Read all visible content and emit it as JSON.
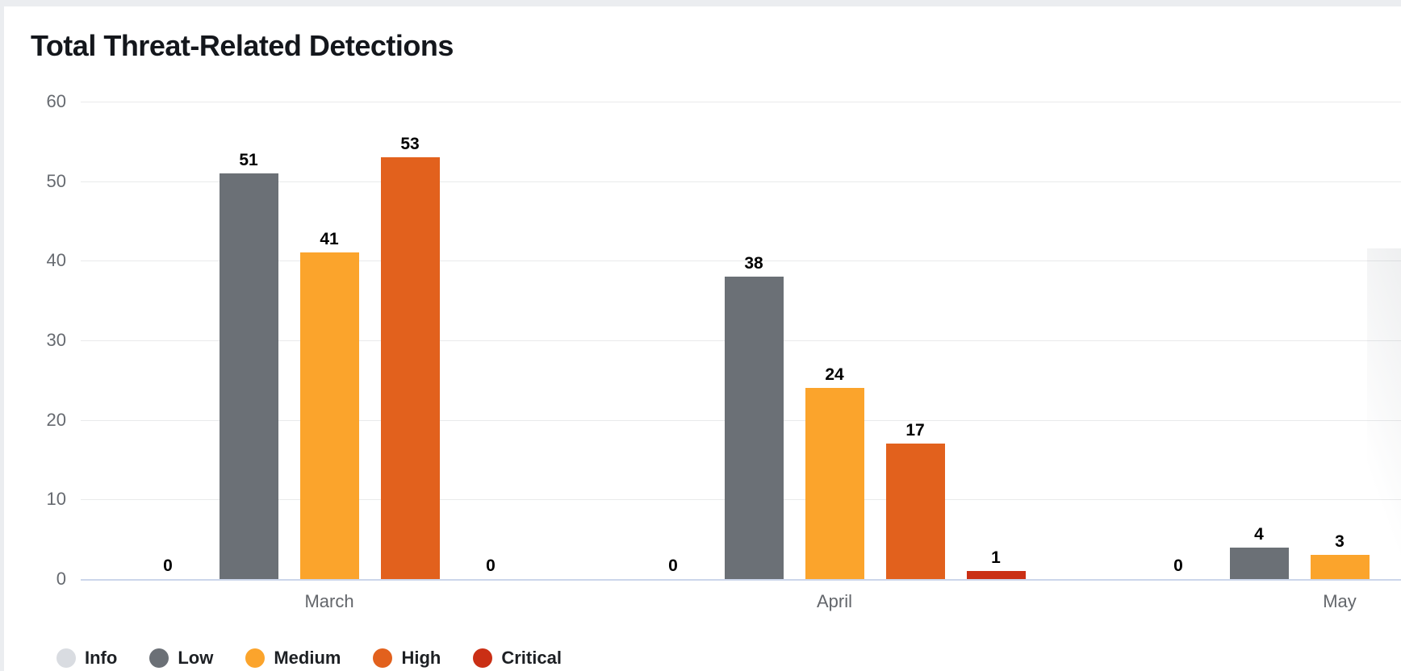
{
  "page": {
    "background": "#ebedf0",
    "card_background": "#ffffff"
  },
  "chart_data": {
    "type": "bar",
    "title": "Total Threat-Related Detections",
    "categories": [
      "March",
      "April",
      "May"
    ],
    "series": [
      {
        "name": "Info",
        "color": "#d9dce1",
        "values": [
          0,
          0,
          0
        ]
      },
      {
        "name": "Low",
        "color": "#6b7076",
        "values": [
          51,
          38,
          4
        ]
      },
      {
        "name": "Medium",
        "color": "#fba42c",
        "values": [
          41,
          24,
          3
        ]
      },
      {
        "name": "High",
        "color": "#e2611d",
        "values": [
          53,
          17,
          null
        ]
      },
      {
        "name": "Critical",
        "color": "#ca2f15",
        "values": [
          0,
          1,
          null
        ]
      }
    ],
    "xlabel": "",
    "ylabel": "",
    "ylim": [
      0,
      60
    ],
    "yticks": [
      0,
      10,
      20,
      30,
      40,
      50,
      60
    ],
    "grid": true,
    "legend_position": "bottom-left",
    "notes": "May group clipped at right edge of view; zero-value bars rendered as 0 labels on baseline",
    "colors": {
      "gridline": "#e9eaeb",
      "baseline": "#ccd6eb",
      "axis_label": "#666a70",
      "value_label": "#000000",
      "title": "#14171c"
    }
  }
}
